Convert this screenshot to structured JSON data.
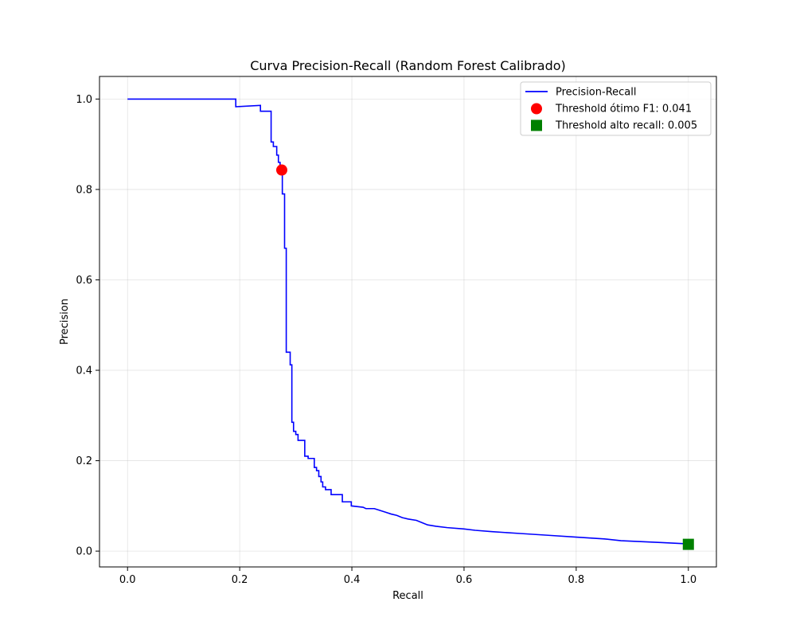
{
  "chart_data": {
    "type": "line",
    "title": "Curva Precision-Recall (Random Forest Calibrado)",
    "xlabel": "Recall",
    "ylabel": "Precision",
    "xlim": [
      -0.05,
      1.05
    ],
    "ylim": [
      -0.035,
      1.05
    ],
    "xticks": [
      0.0,
      0.2,
      0.4,
      0.6,
      0.8,
      1.0
    ],
    "yticks": [
      0.0,
      0.2,
      0.4,
      0.6,
      0.8,
      1.0
    ],
    "xtick_labels": [
      "0.0",
      "0.2",
      "0.4",
      "0.6",
      "0.8",
      "1.0"
    ],
    "ytick_labels": [
      "0.0",
      "0.2",
      "0.4",
      "0.6",
      "0.8",
      "1.0"
    ],
    "grid": true,
    "legend_position": "top-right",
    "series": [
      {
        "name": "Precision-Recall",
        "kind": "step-line",
        "color": "#0000ff",
        "points": [
          [
            0.0,
            1.0
          ],
          [
            0.193,
            1.0
          ],
          [
            0.193,
            0.983
          ],
          [
            0.237,
            0.986
          ],
          [
            0.237,
            0.973
          ],
          [
            0.256,
            0.973
          ],
          [
            0.256,
            0.905
          ],
          [
            0.26,
            0.905
          ],
          [
            0.26,
            0.895
          ],
          [
            0.266,
            0.895
          ],
          [
            0.266,
            0.876
          ],
          [
            0.269,
            0.876
          ],
          [
            0.269,
            0.86
          ],
          [
            0.272,
            0.86
          ],
          [
            0.272,
            0.845
          ],
          [
            0.276,
            0.845
          ],
          [
            0.276,
            0.79
          ],
          [
            0.28,
            0.79
          ],
          [
            0.28,
            0.67
          ],
          [
            0.283,
            0.67
          ],
          [
            0.283,
            0.44
          ],
          [
            0.29,
            0.44
          ],
          [
            0.29,
            0.412
          ],
          [
            0.293,
            0.412
          ],
          [
            0.293,
            0.285
          ],
          [
            0.296,
            0.285
          ],
          [
            0.296,
            0.265
          ],
          [
            0.3,
            0.265
          ],
          [
            0.3,
            0.258
          ],
          [
            0.304,
            0.258
          ],
          [
            0.304,
            0.245
          ],
          [
            0.316,
            0.245
          ],
          [
            0.316,
            0.21
          ],
          [
            0.322,
            0.21
          ],
          [
            0.322,
            0.205
          ],
          [
            0.333,
            0.205
          ],
          [
            0.333,
            0.185
          ],
          [
            0.337,
            0.185
          ],
          [
            0.337,
            0.178
          ],
          [
            0.341,
            0.178
          ],
          [
            0.341,
            0.165
          ],
          [
            0.345,
            0.165
          ],
          [
            0.345,
            0.153
          ],
          [
            0.348,
            0.153
          ],
          [
            0.348,
            0.142
          ],
          [
            0.353,
            0.142
          ],
          [
            0.353,
            0.136
          ],
          [
            0.363,
            0.136
          ],
          [
            0.363,
            0.125
          ],
          [
            0.383,
            0.125
          ],
          [
            0.383,
            0.109
          ],
          [
            0.399,
            0.109
          ],
          [
            0.399,
            0.1
          ],
          [
            0.42,
            0.097
          ],
          [
            0.425,
            0.094
          ],
          [
            0.44,
            0.094
          ],
          [
            0.45,
            0.09
          ],
          [
            0.46,
            0.086
          ],
          [
            0.47,
            0.082
          ],
          [
            0.48,
            0.079
          ],
          [
            0.49,
            0.074
          ],
          [
            0.5,
            0.071
          ],
          [
            0.515,
            0.068
          ],
          [
            0.525,
            0.063
          ],
          [
            0.535,
            0.058
          ],
          [
            0.55,
            0.055
          ],
          [
            0.57,
            0.052
          ],
          [
            0.6,
            0.049
          ],
          [
            0.62,
            0.046
          ],
          [
            0.65,
            0.043
          ],
          [
            0.7,
            0.039
          ],
          [
            0.75,
            0.035
          ],
          [
            0.8,
            0.031
          ],
          [
            0.85,
            0.027
          ],
          [
            0.88,
            0.023
          ],
          [
            0.95,
            0.019
          ],
          [
            1.0,
            0.016
          ]
        ]
      },
      {
        "name": "Threshold ótimo F1: 0.041",
        "kind": "scatter-circle",
        "color": "#ff0000",
        "points": [
          [
            0.275,
            0.843
          ]
        ]
      },
      {
        "name": "Threshold alto recall: 0.005",
        "kind": "scatter-square",
        "color": "#008000",
        "points": [
          [
            1.0,
            0.015
          ]
        ]
      }
    ]
  }
}
